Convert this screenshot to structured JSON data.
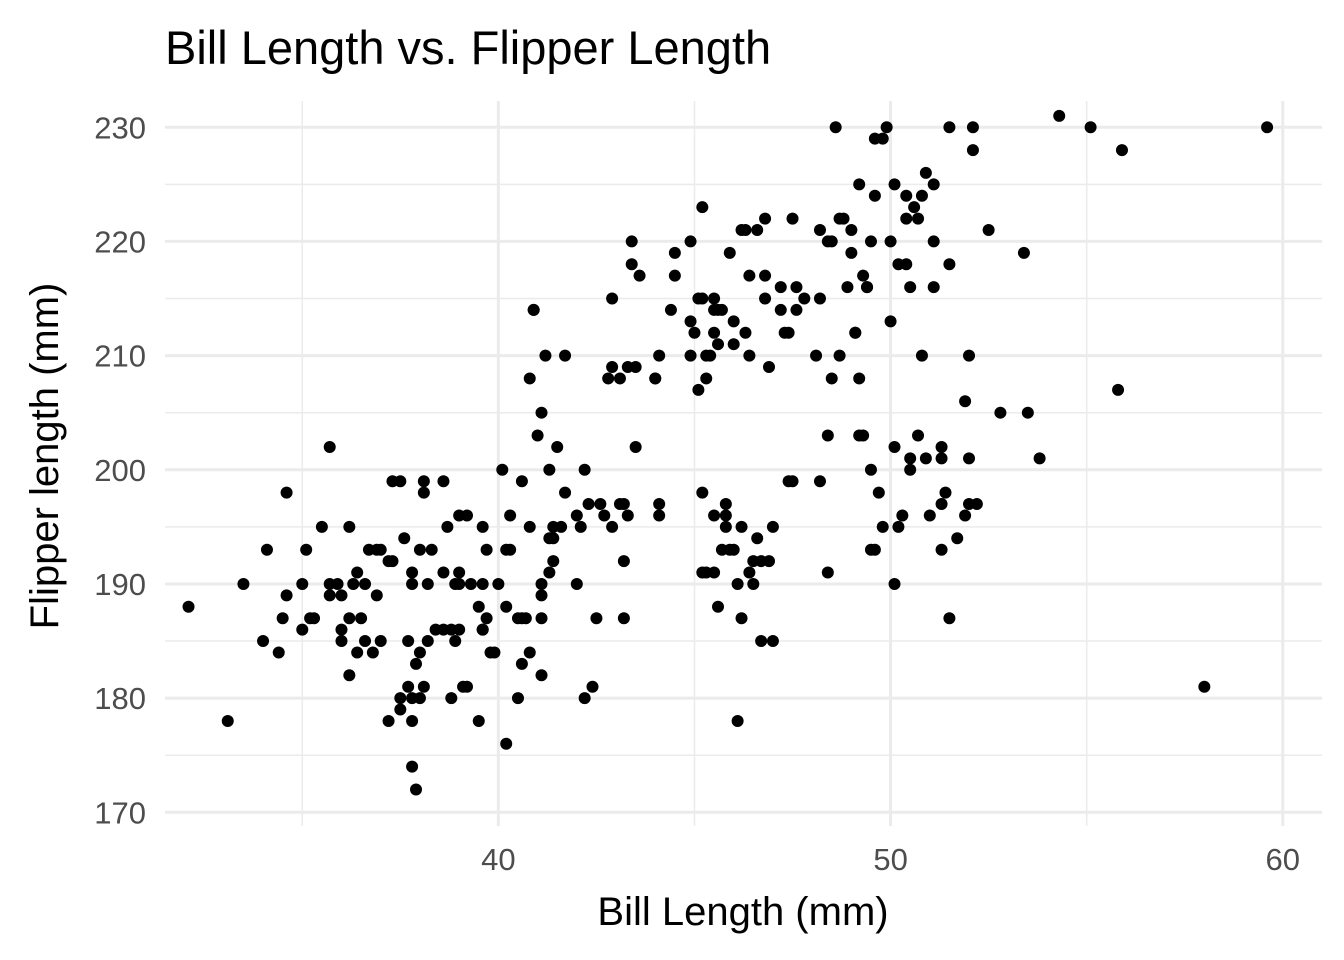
{
  "chart_data": {
    "type": "scatter",
    "title": "Bill Length vs. Flipper Length",
    "xlabel": "Bill Length (mm)",
    "ylabel": "Flipper length (mm)",
    "xlim": [
      31.5,
      61
    ],
    "ylim": [
      168.8,
      232.3
    ],
    "x_ticks": [
      40,
      50,
      60
    ],
    "y_ticks": [
      170,
      180,
      190,
      200,
      210,
      220,
      230
    ],
    "x_tick_labels": [
      "40",
      "50",
      "60"
    ],
    "y_tick_labels": [
      "170",
      "180",
      "190",
      "200",
      "210",
      "220",
      "230"
    ],
    "grid": true,
    "legend": "none",
    "point_color": "#000000",
    "points": [
      [
        32.1,
        188
      ],
      [
        33.1,
        178
      ],
      [
        33.5,
        190
      ],
      [
        34.0,
        185
      ],
      [
        34.1,
        193
      ],
      [
        34.4,
        184
      ],
      [
        34.5,
        187
      ],
      [
        34.6,
        189
      ],
      [
        34.6,
        198
      ],
      [
        35.0,
        186
      ],
      [
        35.0,
        190
      ],
      [
        35.1,
        193
      ],
      [
        35.2,
        187
      ],
      [
        35.3,
        187
      ],
      [
        35.5,
        195
      ],
      [
        35.7,
        189
      ],
      [
        35.7,
        202
      ],
      [
        35.9,
        190
      ],
      [
        36.0,
        185
      ],
      [
        36.0,
        186
      ],
      [
        36.0,
        189
      ],
      [
        36.2,
        187
      ],
      [
        36.2,
        195
      ],
      [
        36.3,
        190
      ],
      [
        36.4,
        184
      ],
      [
        36.5,
        187
      ],
      [
        36.6,
        185
      ],
      [
        36.7,
        193
      ],
      [
        36.8,
        184
      ],
      [
        36.9,
        189
      ],
      [
        37.0,
        185
      ],
      [
        37.2,
        178
      ],
      [
        37.3,
        192
      ],
      [
        37.3,
        199
      ],
      [
        37.5,
        179
      ],
      [
        37.6,
        194
      ],
      [
        37.7,
        181
      ],
      [
        37.7,
        185
      ],
      [
        37.8,
        174
      ],
      [
        37.8,
        180
      ],
      [
        37.9,
        172
      ],
      [
        38.1,
        181
      ],
      [
        38.1,
        198
      ],
      [
        38.2,
        185
      ],
      [
        38.6,
        191
      ],
      [
        38.6,
        199
      ],
      [
        38.7,
        195
      ],
      [
        38.8,
        180
      ],
      [
        38.9,
        185
      ],
      [
        39.0,
        191
      ],
      [
        39.0,
        186
      ],
      [
        39.2,
        181
      ],
      [
        39.2,
        196
      ],
      [
        39.5,
        188
      ],
      [
        39.5,
        178
      ],
      [
        39.6,
        186
      ],
      [
        39.7,
        193
      ],
      [
        39.8,
        184
      ],
      [
        40.2,
        176
      ],
      [
        40.2,
        193
      ],
      [
        40.3,
        196
      ],
      [
        40.5,
        187
      ],
      [
        40.6,
        183
      ],
      [
        40.6,
        199
      ],
      [
        40.8,
        184
      ],
      [
        40.9,
        214
      ],
      [
        41.0,
        203
      ],
      [
        41.1,
        182
      ],
      [
        41.1,
        190
      ],
      [
        41.1,
        205
      ],
      [
        41.3,
        194
      ],
      [
        41.4,
        195
      ],
      [
        41.5,
        202
      ],
      [
        41.6,
        195
      ],
      [
        42.0,
        190
      ],
      [
        42.1,
        195
      ],
      [
        42.2,
        180
      ],
      [
        42.4,
        181
      ],
      [
        42.5,
        187
      ],
      [
        42.7,
        196
      ],
      [
        42.8,
        208
      ],
      [
        42.9,
        195
      ],
      [
        43.2,
        187
      ],
      [
        43.2,
        197
      ],
      [
        43.3,
        209
      ],
      [
        43.5,
        202
      ],
      [
        43.6,
        217
      ],
      [
        44.1,
        196
      ],
      [
        44.1,
        210
      ],
      [
        44.4,
        214
      ],
      [
        44.5,
        219
      ],
      [
        44.9,
        213
      ],
      [
        45.0,
        212
      ],
      [
        45.1,
        207
      ],
      [
        45.2,
        191
      ],
      [
        45.2,
        198
      ],
      [
        45.2,
        223
      ],
      [
        45.3,
        208
      ],
      [
        45.5,
        212
      ],
      [
        45.5,
        196
      ],
      [
        45.7,
        193
      ],
      [
        45.8,
        197
      ],
      [
        45.9,
        219
      ],
      [
        46.1,
        178
      ],
      [
        46.2,
        187
      ],
      [
        46.4,
        210
      ],
      [
        46.5,
        190
      ],
      [
        46.7,
        185
      ],
      [
        46.8,
        215
      ],
      [
        47.0,
        185
      ],
      [
        47.2,
        214
      ],
      [
        47.5,
        199
      ],
      [
        48.1,
        210
      ],
      [
        48.2,
        199
      ],
      [
        48.4,
        191
      ],
      [
        48.5,
        208
      ],
      [
        48.7,
        222
      ],
      [
        49.1,
        212
      ],
      [
        49.2,
        203
      ],
      [
        49.3,
        217
      ],
      [
        49.5,
        193
      ],
      [
        49.8,
        229
      ],
      [
        50.0,
        213
      ],
      [
        50.1,
        190
      ],
      [
        50.2,
        218
      ],
      [
        50.5,
        200
      ],
      [
        50.8,
        210
      ],
      [
        51.0,
        196
      ],
      [
        51.1,
        225
      ],
      [
        51.3,
        193
      ],
      [
        51.5,
        187
      ],
      [
        51.5,
        230
      ],
      [
        52.0,
        210
      ],
      [
        52.2,
        197
      ],
      [
        52.5,
        221
      ],
      [
        53.4,
        219
      ],
      [
        54.3,
        231
      ],
      [
        55.1,
        230
      ],
      [
        55.9,
        228
      ],
      [
        58.0,
        181
      ],
      [
        59.6,
        230
      ],
      [
        50.4,
        224
      ],
      [
        50.9,
        226
      ],
      [
        49.6,
        224
      ],
      [
        48.6,
        230
      ],
      [
        46.6,
        221
      ],
      [
        47.6,
        214
      ],
      [
        46.0,
        213
      ],
      [
        45.6,
        211
      ],
      [
        47.3,
        212
      ],
      [
        48.5,
        220
      ],
      [
        49.0,
        219
      ],
      [
        50.5,
        216
      ],
      [
        51.5,
        218
      ],
      [
        52.1,
        228
      ],
      [
        46.9,
        209
      ],
      [
        45.4,
        210
      ],
      [
        48.9,
        216
      ],
      [
        49.9,
        230
      ],
      [
        50.6,
        223
      ],
      [
        51.9,
        196
      ],
      [
        50.9,
        201
      ],
      [
        49.7,
        198
      ],
      [
        50.3,
        196
      ],
      [
        51.4,
        198
      ],
      [
        52.8,
        205
      ],
      [
        53.5,
        205
      ],
      [
        52.0,
        201
      ],
      [
        51.7,
        194
      ],
      [
        50.1,
        202
      ],
      [
        49.5,
        200
      ],
      [
        46.4,
        191
      ],
      [
        45.8,
        195
      ],
      [
        46.6,
        194
      ],
      [
        45.5,
        191
      ],
      [
        47.0,
        195
      ],
      [
        47.4,
        199
      ],
      [
        46.9,
        192
      ],
      [
        46.2,
        195
      ],
      [
        46.5,
        192
      ],
      [
        45.9,
        193
      ],
      [
        46.0,
        193
      ],
      [
        45.6,
        188
      ],
      [
        46.1,
        190
      ],
      [
        46.7,
        192
      ],
      [
        42.0,
        196
      ],
      [
        41.4,
        194
      ],
      [
        40.8,
        195
      ],
      [
        43.2,
        192
      ],
      [
        42.6,
        197
      ],
      [
        41.7,
        198
      ],
      [
        42.2,
        200
      ],
      [
        41.3,
        200
      ],
      [
        39.6,
        190
      ],
      [
        38.2,
        190
      ],
      [
        36.6,
        190
      ],
      [
        35.7,
        190
      ],
      [
        37.8,
        191
      ],
      [
        38.8,
        186
      ],
      [
        37.5,
        199
      ],
      [
        36.9,
        193
      ],
      [
        38.3,
        193
      ],
      [
        39.0,
        190
      ],
      [
        39.3,
        190
      ],
      [
        40.1,
        200
      ],
      [
        37.0,
        193
      ],
      [
        36.4,
        191
      ],
      [
        39.7,
        187
      ],
      [
        40.3,
        193
      ],
      [
        39.6,
        195
      ],
      [
        41.1,
        189
      ],
      [
        38.0,
        184
      ],
      [
        39.9,
        184
      ],
      [
        40.7,
        187
      ],
      [
        37.9,
        183
      ],
      [
        36.2,
        182
      ],
      [
        38.1,
        199
      ],
      [
        43.1,
        208
      ],
      [
        42.9,
        215
      ],
      [
        43.4,
        218
      ],
      [
        43.4,
        220
      ],
      [
        44.0,
        208
      ],
      [
        44.5,
        217
      ],
      [
        44.9,
        220
      ],
      [
        45.3,
        210
      ],
      [
        45.1,
        215
      ],
      [
        45.5,
        215
      ],
      [
        45.6,
        214
      ],
      [
        45.7,
        214
      ],
      [
        46.2,
        221
      ],
      [
        46.4,
        217
      ],
      [
        46.3,
        212
      ],
      [
        46.8,
        222
      ],
      [
        47.2,
        216
      ],
      [
        47.6,
        216
      ],
      [
        47.8,
        215
      ],
      [
        48.2,
        221
      ],
      [
        48.4,
        220
      ],
      [
        49.1,
        212
      ],
      [
        49.6,
        229
      ],
      [
        49.0,
        221
      ],
      [
        50.0,
        220
      ],
      [
        50.7,
        222
      ],
      [
        51.1,
        220
      ],
      [
        50.4,
        222
      ],
      [
        49.5,
        220
      ],
      [
        49.4,
        216
      ],
      [
        48.7,
        210
      ],
      [
        44.0,
        208
      ],
      [
        43.5,
        209
      ],
      [
        42.9,
        209
      ],
      [
        41.7,
        210
      ],
      [
        41.2,
        210
      ],
      [
        40.8,
        208
      ],
      [
        40.9,
        214
      ],
      [
        45.8,
        196
      ],
      [
        45.3,
        191
      ],
      [
        44.1,
        197
      ],
      [
        41.3,
        191
      ],
      [
        43.1,
        197
      ],
      [
        43.3,
        196
      ],
      [
        42.3,
        197
      ],
      [
        41.1,
        187
      ],
      [
        40.6,
        187
      ],
      [
        40.2,
        188
      ],
      [
        37.8,
        178
      ],
      [
        38.0,
        180
      ],
      [
        37.5,
        180
      ],
      [
        38.4,
        186
      ],
      [
        38.6,
        186
      ],
      [
        38.0,
        193
      ],
      [
        37.8,
        190
      ],
      [
        39.1,
        181
      ],
      [
        39.6,
        186
      ],
      [
        39.0,
        196
      ],
      [
        37.2,
        192
      ],
      [
        38.9,
        190
      ],
      [
        41.4,
        192
      ],
      [
        40.0,
        190
      ],
      [
        40.5,
        180
      ],
      [
        47.4,
        212
      ],
      [
        49.3,
        203
      ],
      [
        49.6,
        193
      ],
      [
        48.4,
        203
      ],
      [
        50.5,
        201
      ],
      [
        51.3,
        201
      ],
      [
        52.0,
        197
      ],
      [
        49.8,
        195
      ],
      [
        50.2,
        195
      ],
      [
        51.3,
        197
      ],
      [
        55.8,
        207
      ],
      [
        53.8,
        201
      ],
      [
        50.7,
        203
      ],
      [
        51.3,
        202
      ],
      [
        48.8,
        222
      ],
      [
        50.4,
        218
      ],
      [
        50.8,
        224
      ],
      [
        49.2,
        225
      ],
      [
        52.1,
        230
      ],
      [
        50.1,
        225
      ],
      [
        49.4,
        216
      ],
      [
        46.8,
        217
      ],
      [
        51.1,
        216
      ],
      [
        48.2,
        215
      ],
      [
        51.9,
        206
      ],
      [
        49.2,
        208
      ],
      [
        47.5,
        222
      ],
      [
        46.3,
        221
      ],
      [
        45.2,
        215
      ],
      [
        45.5,
        214
      ],
      [
        44.9,
        210
      ],
      [
        46.0,
        211
      ]
    ]
  }
}
